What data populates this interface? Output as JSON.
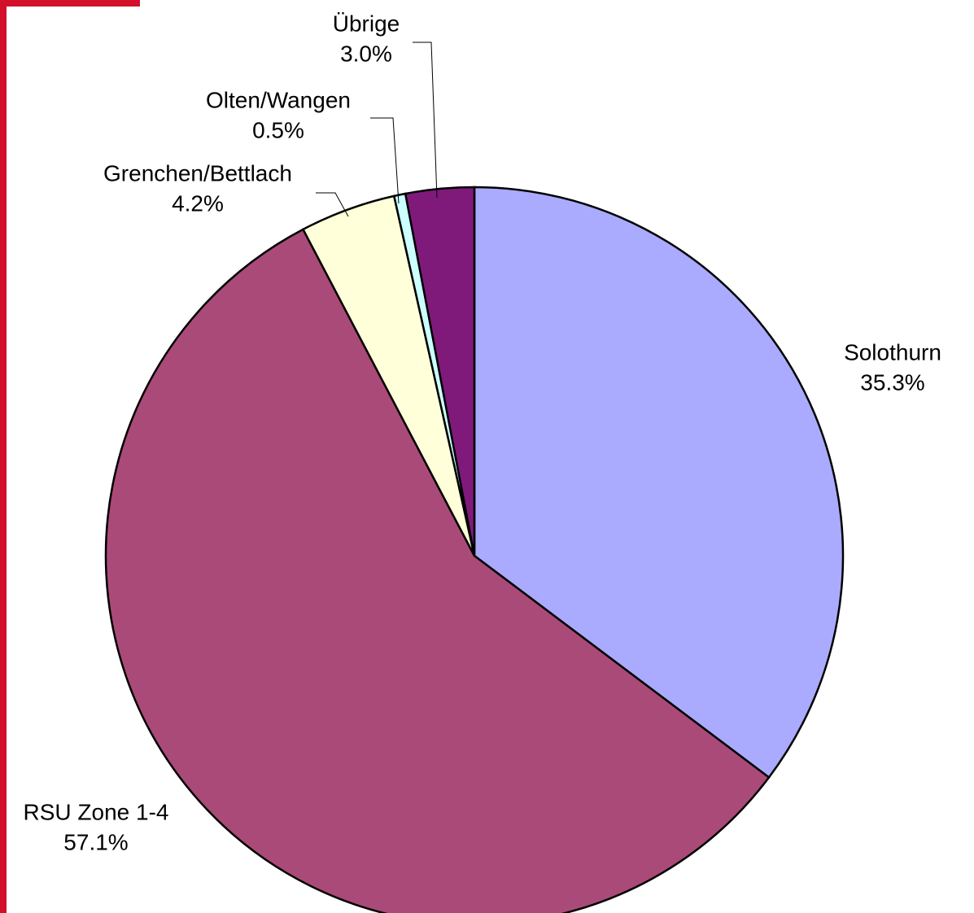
{
  "chart_data": {
    "type": "pie",
    "categories": [
      "Solothurn",
      "RSU Zone 1-4",
      "Grenchen/Bettlach",
      "Olten/Wangen",
      "Übrige"
    ],
    "values": [
      35.3,
      57.1,
      4.2,
      0.5,
      3.0
    ],
    "value_labels": [
      "35.3%",
      "57.1%",
      "4.2%",
      "0.5%",
      "3.0%"
    ],
    "colors": [
      "#aaaaff",
      "#aa4a78",
      "#ffffd9",
      "#ccffff",
      "#7f1a7a"
    ]
  }
}
